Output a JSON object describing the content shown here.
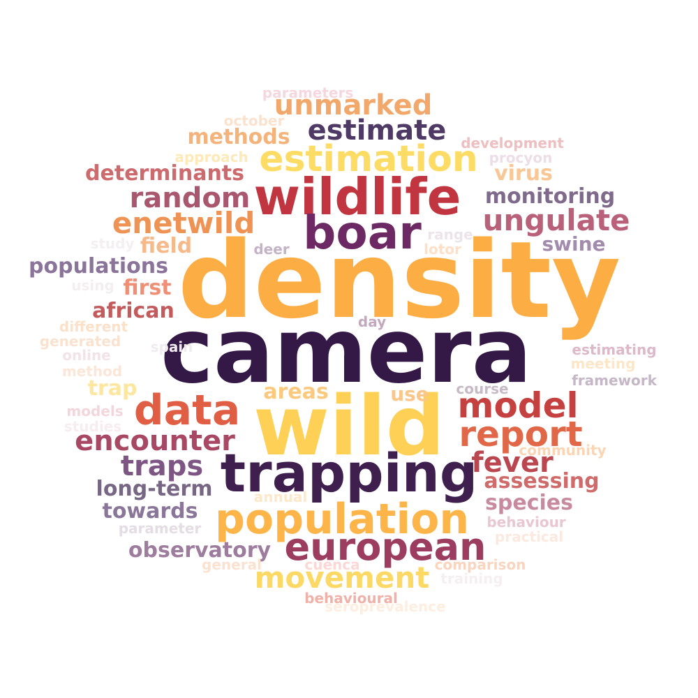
{
  "words": [
    {
      "text": "density",
      "color": "#fcad44"
    },
    {
      "text": "camera",
      "color": "#341947"
    },
    {
      "text": "wild",
      "color": "#fed055"
    },
    {
      "text": "trapping",
      "color": "#3f1f4e"
    },
    {
      "text": "wildlife",
      "color": "#c0353f"
    },
    {
      "text": "boar",
      "color": "#6c2963"
    },
    {
      "text": "population",
      "color": "#fdb54a"
    },
    {
      "text": "european",
      "color": "#9c3c5e"
    },
    {
      "text": "estimation",
      "color": "#fddc66"
    },
    {
      "text": "data",
      "color": "#e05f44"
    },
    {
      "text": "model",
      "color": "#c5413f"
    },
    {
      "text": "report",
      "color": "#e06747"
    },
    {
      "text": "movement",
      "color": "#fcd965"
    },
    {
      "text": "encounter",
      "color": "#a84864"
    },
    {
      "text": "estimate",
      "color": "#4e3a64"
    },
    {
      "text": "unmarked",
      "color": "#f1a86a"
    },
    {
      "text": "random",
      "color": "#a9576f"
    },
    {
      "text": "enetwild",
      "color": "#ef9354"
    },
    {
      "text": "ungulate",
      "color": "#b9607a"
    },
    {
      "text": "traps",
      "color": "#7d5683"
    },
    {
      "text": "fever",
      "color": "#ba4750"
    },
    {
      "text": "methods",
      "color": "#f4b37b"
    },
    {
      "text": "determinants",
      "color": "#cd6a6e"
    },
    {
      "text": "monitoring",
      "color": "#806a8b"
    },
    {
      "text": "populations",
      "color": "#8a7499"
    },
    {
      "text": "long-term",
      "color": "#776785"
    },
    {
      "text": "towards",
      "color": "#8a7698"
    },
    {
      "text": "observatory",
      "color": "#9d7c9e"
    },
    {
      "text": "assessing",
      "color": "#d06b6b"
    },
    {
      "text": "species",
      "color": "#c88a9e"
    },
    {
      "text": "african",
      "color": "#c35a5c"
    },
    {
      "text": "first",
      "color": "#ef8f76"
    },
    {
      "text": "field",
      "color": "#f6b98a"
    },
    {
      "text": "virus",
      "color": "#f9c795"
    },
    {
      "text": "swine",
      "color": "#a28bad"
    },
    {
      "text": "areas",
      "color": "#fbc97e"
    },
    {
      "text": "use",
      "color": "#fbc68a"
    },
    {
      "text": "trap",
      "color": "#fde7a0"
    },
    {
      "text": "parameters",
      "color": "#f5d8df"
    },
    {
      "text": "october",
      "color": "#fbe2cf"
    },
    {
      "text": "approach",
      "color": "#fdeab8"
    },
    {
      "text": "development",
      "color": "#edbfc0"
    },
    {
      "text": "procyon",
      "color": "#ecdde6"
    },
    {
      "text": "range",
      "color": "#ece4ea"
    },
    {
      "text": "lotor",
      "color": "#fde0c7"
    },
    {
      "text": "deer",
      "color": "#c4b3c6"
    },
    {
      "text": "study",
      "color": "#f3eff2"
    },
    {
      "text": "using",
      "color": "#f3eef0"
    },
    {
      "text": "day",
      "color": "#c2a9bd"
    },
    {
      "text": "different",
      "color": "#fbe0ca"
    },
    {
      "text": "generated",
      "color": "#fae2d0"
    },
    {
      "text": "spain",
      "color": "#f0ebef"
    },
    {
      "text": "online",
      "color": "#f1e3e8"
    },
    {
      "text": "method",
      "color": "#fbe6d8"
    },
    {
      "text": "estimating",
      "color": "#dcb8c8"
    },
    {
      "text": "meeting",
      "color": "#fde6c8"
    },
    {
      "text": "framework",
      "color": "#c6b7c6"
    },
    {
      "text": "course",
      "color": "#c8b9c7"
    },
    {
      "text": "models",
      "color": "#f3d6dc"
    },
    {
      "text": "studies",
      "color": "#f7ecef"
    },
    {
      "text": "community",
      "color": "#fbd5b3"
    },
    {
      "text": "annual",
      "color": "#fde8c9"
    },
    {
      "text": "parameter",
      "color": "#e4dde4"
    },
    {
      "text": "behaviour",
      "color": "#e8c7d3"
    },
    {
      "text": "practical",
      "color": "#fbe8de"
    },
    {
      "text": "general",
      "color": "#fbe1d0"
    },
    {
      "text": "cuenca",
      "color": "#fbd8d6"
    },
    {
      "text": "comparison",
      "color": "#f9d4bf"
    },
    {
      "text": "training",
      "color": "#f6eff2"
    },
    {
      "text": "behavioural",
      "color": "#efb1a8"
    },
    {
      "text": "seroprevalence",
      "color": "#fdeee0"
    }
  ]
}
